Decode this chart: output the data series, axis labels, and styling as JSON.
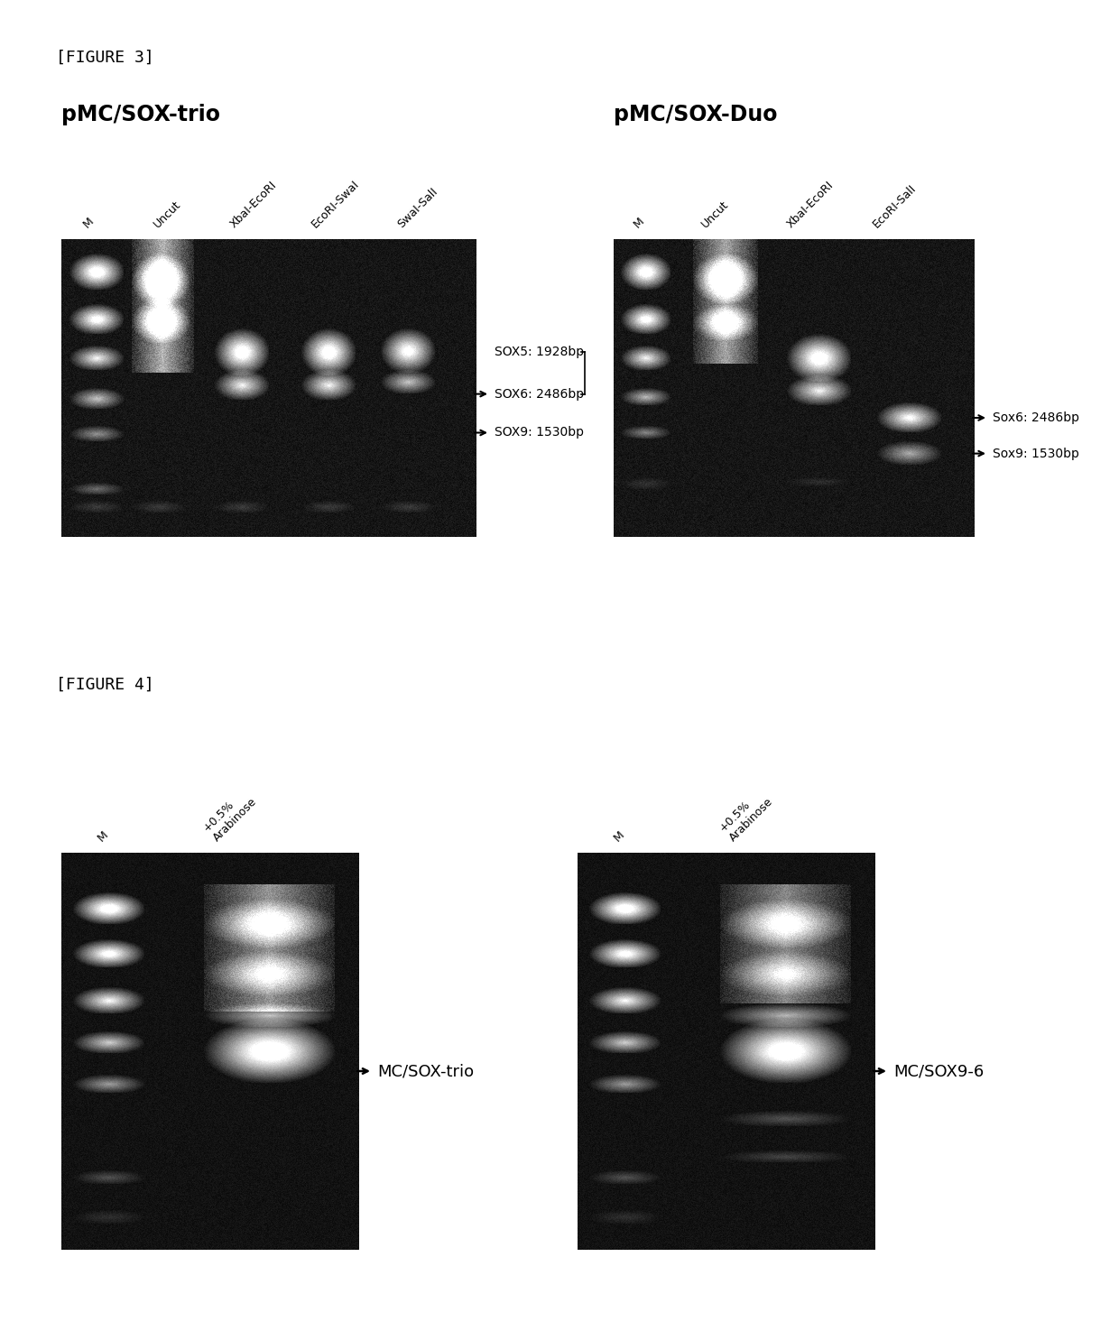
{
  "figure3_label": "[FIGURE 3]",
  "figure4_label": "[FIGURE 4]",
  "panel1_title": "pMC/SOX-trio",
  "panel2_title": "pMC/SOX-Duo",
  "panel1_lanes": [
    "M",
    "Uncut",
    "XbaI-EcoRI",
    "EcoRI-SwaI",
    "SwaI-SalI"
  ],
  "panel2_lanes": [
    "M",
    "Uncut",
    "XbaI-EcoRI",
    "EcoRI-SalI"
  ],
  "panel3_lanes": [
    "M",
    "+0.5%\nArabinose"
  ],
  "panel4_lanes": [
    "M",
    "+0.5%\nArabinose"
  ],
  "sox5_label": "SOX5: 1928bp",
  "sox6_label": "SOX6: 2486bp",
  "sox9_label": "SOX9: 1530bp",
  "sox6b_label": "Sox6: 2486bp",
  "sox9b_label": "Sox9: 1530bp",
  "mc_trio_label": "MC/SOX-trio",
  "mc96_label": "MC/SOX9-6",
  "page_bg": "#ffffff"
}
